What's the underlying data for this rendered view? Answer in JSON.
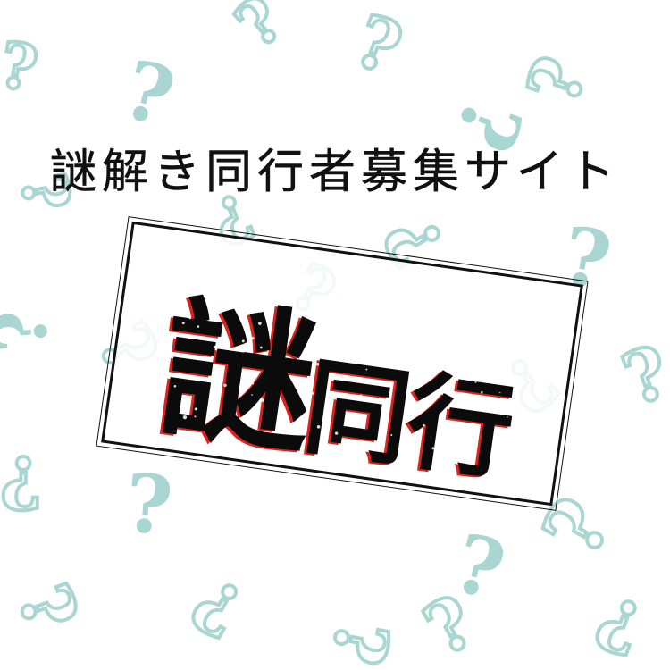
{
  "headline": "謎解き同行者募集サイト",
  "logo": {
    "big_char": "謎",
    "rest": "同行"
  },
  "background_mark": "?",
  "colors": {
    "mark": "#a9d6d2",
    "ink": "#111111",
    "accent": "#d8241f"
  }
}
